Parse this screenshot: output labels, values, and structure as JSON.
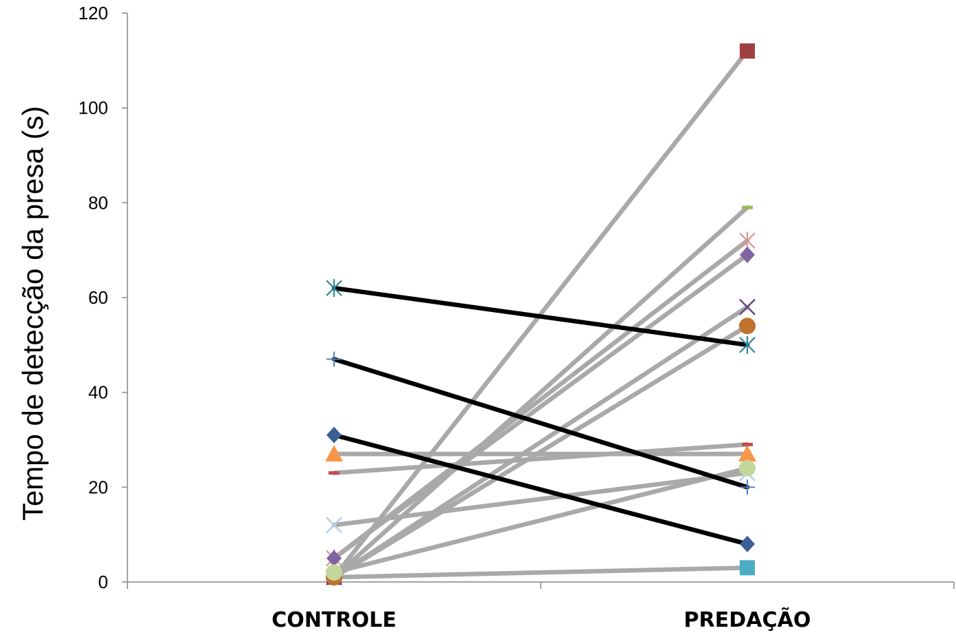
{
  "chart_data": {
    "type": "line",
    "title": "",
    "xlabel": "",
    "ylabel": "Tempo de detecção da presa (s)",
    "categories": [
      "CONTROLE",
      "PREDAÇÃO"
    ],
    "ylim": [
      0,
      120
    ],
    "yticks": [
      0,
      20,
      40,
      60,
      80,
      100,
      120
    ],
    "grid": false,
    "legend": "none",
    "series": [
      {
        "values": [
          1,
          3
        ],
        "color": "#a9a9a9",
        "marker": "square",
        "marker_color": "#4bacc6"
      },
      {
        "values": [
          1,
          112
        ],
        "color": "#a9a9a9",
        "marker": "square",
        "marker_color": "#a04040"
      },
      {
        "values": [
          1,
          79
        ],
        "color": "#a9a9a9",
        "marker": "dash",
        "marker_color": "#9bbb59"
      },
      {
        "values": [
          5,
          72
        ],
        "color": "#a9a9a9",
        "marker": "star",
        "marker_color": "#d99694"
      },
      {
        "values": [
          5,
          69
        ],
        "color": "#a9a9a9",
        "marker": "diamond",
        "marker_color": "#8064a2"
      },
      {
        "values": [
          1,
          58
        ],
        "color": "#a9a9a9",
        "marker": "x",
        "marker_color": "#604a7b"
      },
      {
        "values": [
          1,
          54
        ],
        "color": "#a9a9a9",
        "marker": "circle",
        "marker_color": "#c0722e"
      },
      {
        "values": [
          27,
          27
        ],
        "color": "#a9a9a9",
        "marker": "triangle",
        "marker_color": "#f79646"
      },
      {
        "values": [
          23,
          29
        ],
        "color": "#a9a9a9",
        "marker": "dash",
        "marker_color": "#c0504d"
      },
      {
        "values": [
          12,
          23
        ],
        "color": "#a9a9a9",
        "marker": "x",
        "marker_color": "#b9cde5"
      },
      {
        "values": [
          2,
          24
        ],
        "color": "#a9a9a9",
        "marker": "circle",
        "marker_color": "#c4d79b"
      },
      {
        "values": [
          62,
          50
        ],
        "color": "#000000",
        "marker": "star",
        "marker_color": "#31859c"
      },
      {
        "values": [
          47,
          20
        ],
        "color": "#000000",
        "marker": "plus",
        "marker_color": "#4f81bd"
      },
      {
        "values": [
          31,
          8
        ],
        "color": "#000000",
        "marker": "diamond",
        "marker_color": "#3a5f96"
      }
    ]
  }
}
